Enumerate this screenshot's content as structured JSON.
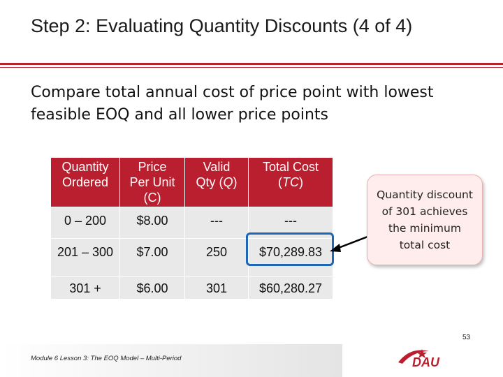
{
  "slide": {
    "title": "Step 2: Evaluating Quantity Discounts (4 of 4)",
    "subtitle": "Compare total annual cost of price point with lowest feasible EOQ and all lower price points",
    "callout": "Quantity discount of 301 achieves the minimum total cost",
    "footer": "Module 6 Lesson 3: The EOQ Model – Multi-Period",
    "page_number": "53",
    "logo_text": "DAU",
    "accent_color": "#b91f2e",
    "highlight_color": "#1f66b5"
  },
  "table": {
    "headers": [
      {
        "line1": "Quantity",
        "line2": "Ordered",
        "line3": ""
      },
      {
        "line1": "Price",
        "line2": "Per Unit",
        "line3": "(C)"
      },
      {
        "line1": "Valid",
        "line2": "Qty (",
        "italic": "Q",
        "line2_end": ")"
      },
      {
        "line1": "Total Cost",
        "line2": "(",
        "italic": "TC",
        "line2_end": ")"
      }
    ],
    "rows": [
      [
        "0 – 200",
        "$8.00",
        "---",
        "---"
      ],
      [
        "201 – 300",
        "$7.00",
        "250",
        "$70,289.83"
      ],
      [
        "301 +",
        "$6.00",
        "301",
        "$60,280.27"
      ]
    ]
  }
}
